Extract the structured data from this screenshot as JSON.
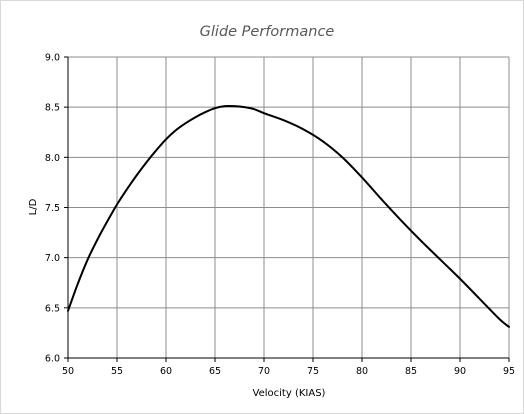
{
  "chart_data": {
    "type": "line",
    "title": "Glide Performance",
    "xlabel": "Velocity (KIAS)",
    "ylabel": "L/D",
    "xlim": [
      50,
      95
    ],
    "ylim": [
      6.0,
      9.0
    ],
    "x_ticks": [
      "50",
      "55",
      "60",
      "65",
      "70",
      "75",
      "80",
      "85",
      "90",
      "95"
    ],
    "y_ticks": [
      "6.0",
      "6.5",
      "7.0",
      "7.5",
      "8.0",
      "8.5",
      "9.0"
    ],
    "grid": true,
    "legend": "none",
    "series": [
      {
        "x": [
          50,
          51,
          52,
          53,
          54,
          55,
          56,
          57,
          58,
          59,
          60,
          61,
          62,
          63,
          64,
          65,
          66,
          67,
          68,
          69,
          70,
          72,
          74,
          76,
          78,
          80,
          82,
          84,
          86,
          88,
          90,
          92,
          94,
          95
        ],
        "y": [
          6.47,
          6.74,
          6.98,
          7.18,
          7.36,
          7.53,
          7.68,
          7.82,
          7.95,
          8.07,
          8.18,
          8.27,
          8.34,
          8.4,
          8.45,
          8.49,
          8.51,
          8.51,
          8.5,
          8.48,
          8.44,
          8.37,
          8.28,
          8.16,
          8.0,
          7.8,
          7.58,
          7.37,
          7.17,
          6.98,
          6.79,
          6.59,
          6.39,
          6.31
        ]
      }
    ],
    "colors": {
      "line": "#000000",
      "grid": "#8c8c8c",
      "axis": "#000000",
      "title": "#595959",
      "frame": "#d9d9d9"
    }
  }
}
